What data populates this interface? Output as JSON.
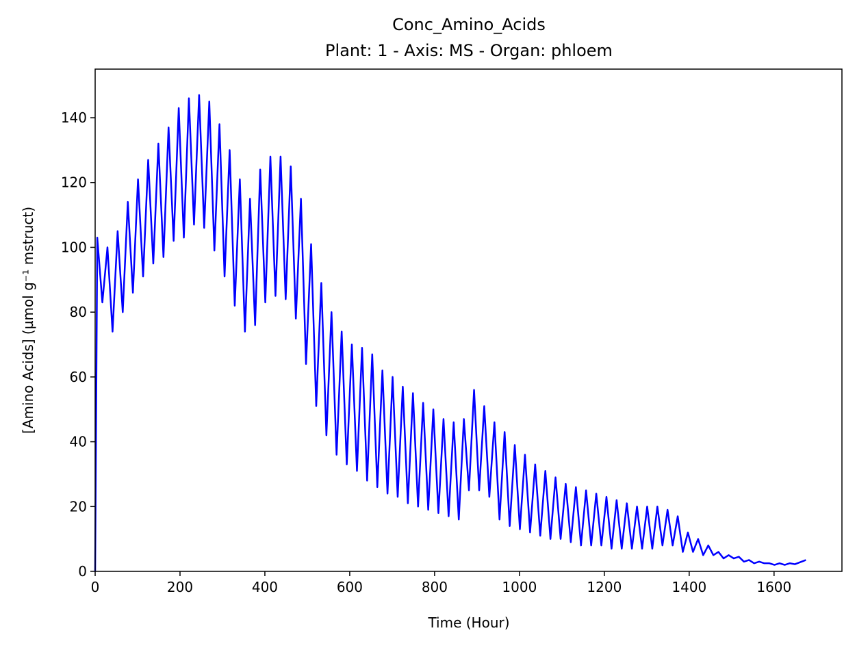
{
  "chart_data": {
    "type": "line",
    "title": "Conc_Amino_Acids",
    "subtitle": "Plant: 1 - Axis: MS - Organ: phloem",
    "x_label": "Time (Hour)",
    "y_label": "[Amino Acids] (µmol g⁻¹ mstruct)",
    "xlim": [
      0,
      1760
    ],
    "ylim": [
      0,
      155
    ],
    "xticks": [
      0,
      200,
      400,
      600,
      800,
      1000,
      1200,
      1400,
      1600
    ],
    "yticks": [
      0,
      20,
      40,
      60,
      80,
      100,
      120,
      140
    ],
    "series": [
      {
        "color": "#0000ff",
        "x": [
          0,
          5,
          17,
          29,
          41,
          53,
          65,
          77,
          89,
          101,
          113,
          125,
          137,
          149,
          161,
          173,
          185,
          197,
          209,
          221,
          233,
          245,
          257,
          269,
          281,
          293,
          305,
          317,
          329,
          341,
          353,
          365,
          377,
          389,
          401,
          413,
          425,
          437,
          449,
          461,
          473,
          485,
          497,
          509,
          521,
          533,
          545,
          557,
          569,
          581,
          593,
          605,
          617,
          629,
          641,
          653,
          665,
          677,
          689,
          701,
          713,
          725,
          737,
          749,
          761,
          773,
          785,
          797,
          809,
          821,
          833,
          845,
          857,
          869,
          881,
          893,
          905,
          917,
          929,
          941,
          953,
          965,
          977,
          989,
          1001,
          1013,
          1025,
          1037,
          1049,
          1061,
          1073,
          1085,
          1097,
          1109,
          1121,
          1133,
          1145,
          1157,
          1169,
          1181,
          1193,
          1205,
          1217,
          1229,
          1241,
          1253,
          1265,
          1277,
          1289,
          1301,
          1313,
          1325,
          1337,
          1349,
          1361,
          1373,
          1385,
          1397,
          1409,
          1421,
          1433,
          1445,
          1457,
          1469,
          1481,
          1493,
          1505,
          1517,
          1529,
          1541,
          1553,
          1565,
          1577,
          1589,
          1601,
          1613,
          1625,
          1637,
          1649,
          1675
        ],
        "values": [
          0,
          103,
          83,
          100,
          74,
          105,
          80,
          114,
          86,
          121,
          91,
          127,
          95,
          132,
          97,
          137,
          102,
          143,
          103,
          146,
          107,
          147,
          106,
          145,
          99,
          138,
          91,
          130,
          82,
          121,
          74,
          115,
          76,
          124,
          83,
          128,
          85,
          128,
          84,
          125,
          78,
          115,
          64,
          101,
          51,
          89,
          42,
          80,
          36,
          74,
          33,
          70,
          31,
          69,
          28,
          67,
          26,
          62,
          24,
          60,
          23,
          57,
          21,
          55,
          20,
          52,
          19,
          50,
          18,
          47,
          17,
          46,
          16,
          47,
          25,
          56,
          25,
          51,
          23,
          46,
          16,
          43,
          14,
          39,
          13,
          36,
          12,
          33,
          11,
          31,
          10,
          29,
          10,
          27,
          9,
          26,
          8,
          25,
          8,
          24,
          8,
          23,
          7,
          22,
          7,
          21,
          7,
          20,
          7,
          20,
          7,
          20,
          8,
          19,
          8,
          17,
          6,
          12,
          6,
          10,
          5,
          8,
          5,
          6,
          4,
          5,
          4,
          4.5,
          3,
          3.5,
          2.5,
          3,
          2.5,
          2.5,
          2,
          2.5,
          2,
          2.5,
          2.2,
          3.5
        ]
      }
    ]
  }
}
